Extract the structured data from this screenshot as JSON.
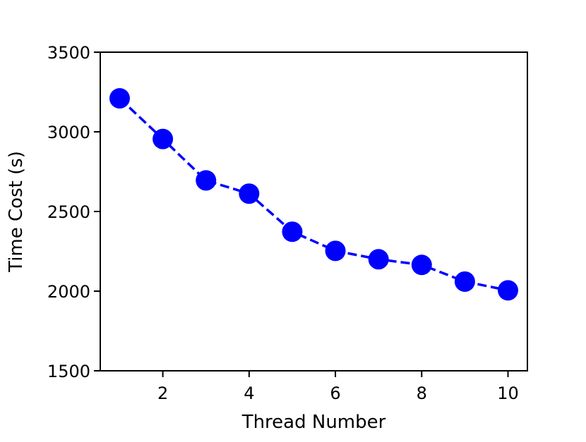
{
  "chart_data": {
    "type": "line",
    "title": "",
    "xlabel": "Thread Number",
    "ylabel": "Time Cost (s)",
    "x": [
      1,
      2,
      3,
      4,
      5,
      6,
      7,
      8,
      9,
      10
    ],
    "series": [
      {
        "values": [
          3210,
          2955,
          2695,
          2612,
          2373,
          2253,
          2200,
          2165,
          2060,
          2005
        ],
        "color": "#0000ff",
        "line_style": "dashed",
        "marker": "circle"
      }
    ],
    "xlim": [
      0.55,
      10.45
    ],
    "ylim": [
      1500,
      3500
    ],
    "xticks": [
      "2",
      "4",
      "6",
      "8",
      "10"
    ],
    "yticks": [
      "1500",
      "2000",
      "2500",
      "3000",
      "3500"
    ],
    "grid": false,
    "legend": "none"
  }
}
